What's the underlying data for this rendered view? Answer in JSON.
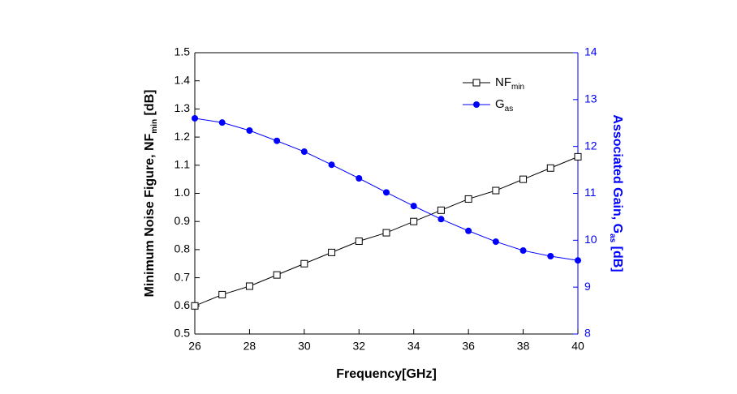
{
  "chart_data": {
    "type": "line",
    "xlabel": "Frequency[GHz]",
    "ylabel": [
      "Minimum Noise Figure, NF",
      "min",
      " [dB]"
    ],
    "y2label": [
      "Associated Gain, G",
      "as",
      " [dB]"
    ],
    "x": [
      26,
      27,
      28,
      29,
      30,
      31,
      32,
      33,
      34,
      35,
      36,
      37,
      38,
      39,
      40
    ],
    "series": [
      {
        "name": "NF",
        "subscript": "min",
        "color": "#000000",
        "marker": "open-square",
        "values": [
          0.6,
          0.64,
          0.67,
          0.71,
          0.75,
          0.79,
          0.83,
          0.86,
          0.9,
          0.94,
          0.98,
          1.01,
          1.05,
          1.09,
          1.13
        ]
      },
      {
        "name": "G",
        "subscript": "as",
        "color": "#0000ff",
        "marker": "filled-circle",
        "axis": "y2",
        "values": [
          12.6,
          12.51,
          12.34,
          12.12,
          11.89,
          11.61,
          11.32,
          11.02,
          10.73,
          10.45,
          10.2,
          9.97,
          9.78,
          9.66,
          9.57
        ]
      }
    ],
    "xlim": [
      26,
      40
    ],
    "xticks": [
      26,
      28,
      30,
      32,
      34,
      36,
      38,
      40
    ],
    "ylim": [
      0.5,
      1.5
    ],
    "yticks": [
      0.5,
      0.6,
      0.7,
      0.8,
      0.9,
      {
        "value": 1,
        "label": "1.0"
      },
      1.1,
      1.2,
      1.3,
      1.4,
      1.5
    ],
    "y2lim": [
      8,
      14
    ],
    "y2ticks": [
      8,
      9,
      10,
      11,
      12,
      13,
      14
    ],
    "y2color": "#0000ff",
    "grid": false,
    "legend": "upper-right"
  }
}
